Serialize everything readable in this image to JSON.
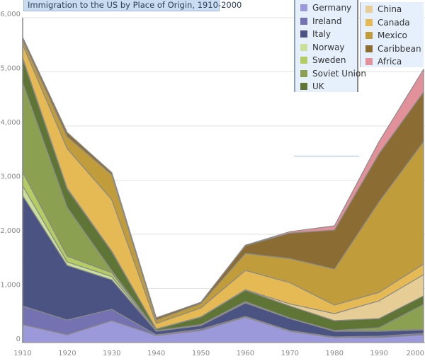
{
  "chart_data": {
    "type": "area",
    "stacked": true,
    "title": "Immigration to the US by Place of Origin, 1910-2000",
    "xlabel": "",
    "ylabel": "",
    "x": [
      1910,
      1920,
      1930,
      1940,
      1950,
      1960,
      1970,
      1980,
      1990,
      2000
    ],
    "x_tick_labels": [
      "1910",
      "1920",
      "1930",
      "1940",
      "1950",
      "1960",
      "1970",
      "1980",
      "1990",
      "2000"
    ],
    "ylim": [
      0,
      6000
    ],
    "y_ticks": [
      0,
      1000,
      2000,
      3000,
      4000,
      5000,
      6000
    ],
    "y_tick_labels": [
      "0",
      "1,000",
      "2,000",
      "3,000",
      "4,000",
      "5,000",
      "6,000"
    ],
    "grid": "horizontal",
    "legend_placement": "top-right",
    "series": [
      {
        "name": "Germany",
        "color": "#9b99d9",
        "values": [
          331,
          144,
          405,
          131,
          222,
          470,
          209,
          92,
          92,
          144
        ]
      },
      {
        "name": "Ireland",
        "color": "#7572b1",
        "values": [
          344,
          274,
          210,
          13,
          26,
          14,
          13,
          13,
          26,
          26
        ]
      },
      {
        "name": "Italy",
        "color": "#4a5382",
        "values": [
          2038,
          1007,
          545,
          65,
          66,
          248,
          222,
          104,
          91,
          65
        ]
      },
      {
        "name": "Norway",
        "color": "#c9df9a",
        "values": [
          183,
          65,
          60,
          5,
          8,
          12,
          4,
          4,
          4,
          5
        ]
      },
      {
        "name": "Sweden",
        "color": "#b3cd63",
        "values": [
          253,
          105,
          70,
          5,
          5,
          10,
          4,
          4,
          4,
          5
        ]
      },
      {
        "name": "Soviet Union",
        "color": "#8ba151",
        "values": [
          1655,
          902,
          40,
          3,
          6,
          4,
          2,
          5,
          58,
          461
        ]
      },
      {
        "name": "UK",
        "color": "#5f7535",
        "values": [
          438,
          340,
          350,
          26,
          137,
          209,
          222,
          183,
          169,
          157
        ]
      },
      {
        "name": "China",
        "color": "#e5cd95",
        "values": [
          20,
          13,
          10,
          5,
          5,
          10,
          39,
          131,
          327,
          392
        ]
      },
      {
        "name": "Canada",
        "color": "#e5b953",
        "values": [
          241,
          732,
          950,
          100,
          165,
          356,
          392,
          157,
          157,
          196
        ]
      },
      {
        "name": "Mexico",
        "color": "#c09c3b",
        "values": [
          83,
          222,
          460,
          65,
          79,
          314,
          445,
          666,
          1673,
          2261
        ]
      },
      {
        "name": "Caribbean",
        "color": "#8b6d33",
        "values": [
          52,
          75,
          40,
          40,
          26,
          144,
          470,
          719,
          889,
          915
        ]
      },
      {
        "name": "Africa",
        "color": "#e2919b",
        "values": [
          0,
          0,
          0,
          0,
          0,
          9,
          26,
          79,
          222,
          419
        ]
      }
    ]
  }
}
